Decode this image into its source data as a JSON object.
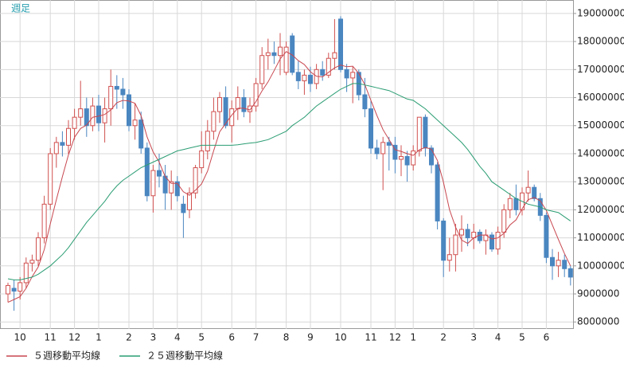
{
  "chart_data": {
    "type": "candlestick",
    "title": "週足",
    "categories": [
      null,
      null,
      "10",
      null,
      null,
      null,
      null,
      "11",
      null,
      null,
      null,
      "12",
      null,
      null,
      null,
      "1",
      null,
      null,
      null,
      null,
      "2",
      null,
      null,
      null,
      "3",
      null,
      null,
      null,
      "4",
      null,
      null,
      null,
      "5",
      null,
      null,
      null,
      null,
      "6",
      null,
      null,
      null,
      "7",
      null,
      null,
      null,
      null,
      "8",
      null,
      null,
      null,
      "9",
      null,
      null,
      null,
      null,
      "10",
      null,
      null,
      null,
      null,
      "11",
      null,
      null,
      null,
      "12",
      null,
      null,
      "1",
      null,
      null,
      null,
      null,
      "2",
      null,
      null,
      null,
      null,
      "3",
      null,
      null,
      null,
      "4",
      null,
      null,
      null,
      "5",
      null,
      null,
      null,
      "6",
      null,
      null,
      null,
      null
    ],
    "open": [
      9000000,
      9200000,
      9100000,
      9400000,
      10100000,
      10200000,
      11000000,
      12200000,
      14000000,
      14400000,
      14300000,
      14900000,
      15300000,
      15600000,
      15000000,
      15700000,
      15100000,
      15600000,
      16400000,
      16300000,
      16100000,
      15000000,
      15200000,
      14200000,
      12500000,
      13400000,
      13200000,
      12600000,
      13000000,
      12200000,
      12000000,
      12600000,
      13500000,
      14100000,
      14800000,
      15500000,
      16000000,
      15000000,
      15600000,
      16000000,
      15500000,
      15700000,
      16500000,
      17500000,
      17600000,
      17500000,
      16900000,
      18200000,
      16900000,
      16600000,
      16800000,
      16500000,
      17000000,
      16800000,
      17400000,
      18800000,
      17000000,
      16700000,
      16900000,
      16100000,
      15600000,
      14200000,
      14000000,
      14400000,
      14300000,
      13800000,
      13900000,
      13600000,
      14100000,
      15300000,
      14200000,
      13600000,
      11600000,
      10200000,
      10400000,
      11100000,
      11300000,
      11000000,
      11200000,
      10900000,
      11100000,
      10600000,
      11200000,
      12000000,
      12400000,
      12000000,
      12600000,
      12800000,
      12400000,
      11800000,
      10300000,
      10000000,
      10200000,
      9900000
    ],
    "high": [
      9400000,
      9500000,
      9600000,
      10300000,
      10400000,
      11200000,
      12500000,
      14200000,
      14600000,
      14800000,
      15200000,
      15600000,
      16600000,
      16000000,
      16000000,
      16100000,
      16000000,
      17000000,
      16800000,
      16700000,
      16300000,
      15800000,
      15500000,
      14400000,
      13600000,
      14000000,
      13600000,
      13400000,
      13200000,
      12500000,
      12800000,
      13600000,
      14800000,
      15200000,
      16000000,
      16200000,
      16400000,
      15900000,
      16400000,
      16300000,
      16000000,
      16700000,
      17800000,
      18100000,
      18000000,
      18300000,
      18000000,
      18300000,
      17300000,
      17000000,
      17100000,
      17200000,
      17300000,
      17600000,
      18800000,
      18900000,
      17200000,
      17100000,
      17000000,
      16700000,
      15900000,
      14500000,
      14600000,
      14600000,
      14600000,
      14300000,
      14100000,
      14300000,
      15300000,
      15400000,
      14300000,
      13700000,
      11700000,
      11000000,
      11500000,
      11800000,
      11500000,
      11500000,
      11300000,
      11300000,
      11200000,
      11400000,
      12200000,
      12600000,
      12900000,
      12800000,
      13400000,
      12900000,
      12600000,
      11900000,
      10600000,
      10500000,
      10400000,
      10000000
    ],
    "low": [
      8700000,
      8400000,
      8800000,
      9200000,
      9800000,
      10000000,
      10800000,
      12000000,
      13500000,
      13900000,
      14000000,
      14500000,
      15000000,
      14600000,
      14800000,
      14800000,
      14400000,
      15000000,
      15600000,
      15600000,
      14800000,
      14500000,
      14000000,
      12300000,
      11900000,
      12800000,
      12000000,
      12000000,
      12300000,
      11000000,
      11700000,
      12400000,
      13300000,
      13800000,
      14500000,
      15100000,
      14900000,
      14400000,
      15200000,
      15300000,
      15100000,
      15500000,
      16300000,
      17000000,
      17200000,
      16800000,
      16800000,
      16800000,
      16300000,
      16100000,
      16200000,
      16300000,
      16600000,
      16700000,
      17000000,
      16900000,
      16200000,
      15800000,
      15900000,
      15300000,
      14000000,
      13800000,
      12700000,
      13400000,
      13300000,
      13200000,
      13000000,
      13400000,
      13900000,
      13900000,
      13300000,
      11300000,
      9600000,
      9800000,
      9800000,
      10500000,
      10700000,
      10600000,
      10800000,
      10400000,
      10500000,
      10400000,
      11000000,
      11700000,
      11800000,
      11800000,
      12300000,
      12300000,
      11600000,
      10100000,
      9500000,
      9600000,
      9600000,
      9300000
    ],
    "close": [
      9300000,
      9100000,
      9400000,
      10100000,
      10200000,
      11000000,
      12200000,
      14000000,
      14400000,
      14300000,
      14900000,
      15300000,
      15600000,
      15000000,
      15700000,
      15100000,
      15600000,
      16400000,
      16300000,
      16100000,
      15000000,
      15200000,
      14200000,
      12500000,
      13400000,
      13200000,
      12600000,
      13000000,
      12500000,
      11900000,
      12600000,
      13500000,
      14100000,
      14800000,
      15500000,
      16000000,
      15000000,
      15600000,
      16000000,
      15500000,
      15700000,
      16500000,
      17500000,
      17600000,
      17500000,
      17800000,
      17800000,
      16900000,
      16600000,
      16800000,
      16500000,
      17000000,
      16800000,
      17400000,
      17600000,
      17000000,
      16700000,
      16900000,
      16100000,
      15600000,
      14200000,
      14000000,
      14400000,
      14300000,
      13800000,
      13900000,
      13600000,
      14100000,
      15300000,
      14200000,
      13600000,
      11600000,
      10200000,
      10400000,
      11100000,
      11300000,
      11000000,
      11200000,
      10900000,
      11100000,
      10600000,
      11200000,
      12000000,
      12400000,
      12000000,
      12600000,
      12800000,
      12400000,
      11800000,
      10300000,
      10000000,
      10200000,
      9900000,
      9600000
    ],
    "series": [
      {
        "name": "５週移動平均線",
        "color": "#c8474f",
        "values": [
          8700000,
          8800000,
          8900000,
          9200000,
          9620000,
          9960000,
          10580000,
          11500000,
          12360000,
          13180000,
          13960000,
          14580000,
          14900000,
          15020000,
          15300000,
          15340000,
          15400000,
          15560000,
          15820000,
          15900000,
          15880000,
          15800000,
          15360000,
          14600000,
          14060000,
          13700000,
          13180000,
          12940000,
          12940000,
          12640000,
          12520000,
          12700000,
          12920000,
          13380000,
          14100000,
          14780000,
          15080000,
          15380000,
          15620000,
          15620000,
          15560000,
          15860000,
          16240000,
          16560000,
          16960000,
          17380000,
          17640000,
          17520000,
          17320000,
          17180000,
          16920000,
          16760000,
          16740000,
          16900000,
          17060000,
          17160000,
          17100000,
          17120000,
          16860000,
          16460000,
          15900000,
          15360000,
          14860000,
          14500000,
          14140000,
          14080000,
          14000000,
          13940000,
          14140000,
          14220000,
          14160000,
          13760000,
          12980000,
          12000000,
          11380000,
          10920000,
          10800000,
          11000000,
          11100000,
          11100000,
          10960000,
          11000000,
          11160000,
          11460000,
          11640000,
          12040000,
          12360000,
          12440000,
          12320000,
          11980000,
          11460000,
          10940000,
          10440000,
          10000000
        ]
      },
      {
        "name": "２５週移動平均線",
        "color": "#2a9d73",
        "values": [
          9540000,
          9500000,
          9500000,
          9550000,
          9600000,
          9700000,
          9850000,
          10000000,
          10200000,
          10400000,
          10650000,
          10950000,
          11250000,
          11550000,
          11800000,
          12050000,
          12300000,
          12600000,
          12850000,
          13050000,
          13200000,
          13350000,
          13500000,
          13600000,
          13700000,
          13800000,
          13900000,
          14000000,
          14100000,
          14150000,
          14200000,
          14250000,
          14300000,
          14300000,
          14300000,
          14300000,
          14300000,
          14300000,
          14320000,
          14350000,
          14380000,
          14400000,
          14450000,
          14500000,
          14600000,
          14700000,
          14800000,
          15000000,
          15150000,
          15300000,
          15500000,
          15700000,
          15850000,
          16000000,
          16150000,
          16300000,
          16400000,
          16500000,
          16500000,
          16450000,
          16400000,
          16350000,
          16300000,
          16250000,
          16150000,
          16050000,
          15950000,
          15900000,
          15750000,
          15600000,
          15400000,
          15200000,
          15000000,
          14800000,
          14600000,
          14400000,
          14150000,
          13850000,
          13550000,
          13300000,
          13000000,
          12850000,
          12700000,
          12550000,
          12400000,
          12300000,
          12200000,
          12150000,
          12100000,
          12000000,
          11950000,
          11900000,
          11750000,
          11600000
        ]
      }
    ],
    "up_color": "#d0504f",
    "down_color": "#4a86c0",
    "ylim": [
      7750000,
      19480000
    ],
    "yticks": [
      8000000,
      9000000,
      10000000,
      11000000,
      12000000,
      13000000,
      14000000,
      15000000,
      16000000,
      17000000,
      18000000,
      19000000
    ],
    "grid": true
  }
}
